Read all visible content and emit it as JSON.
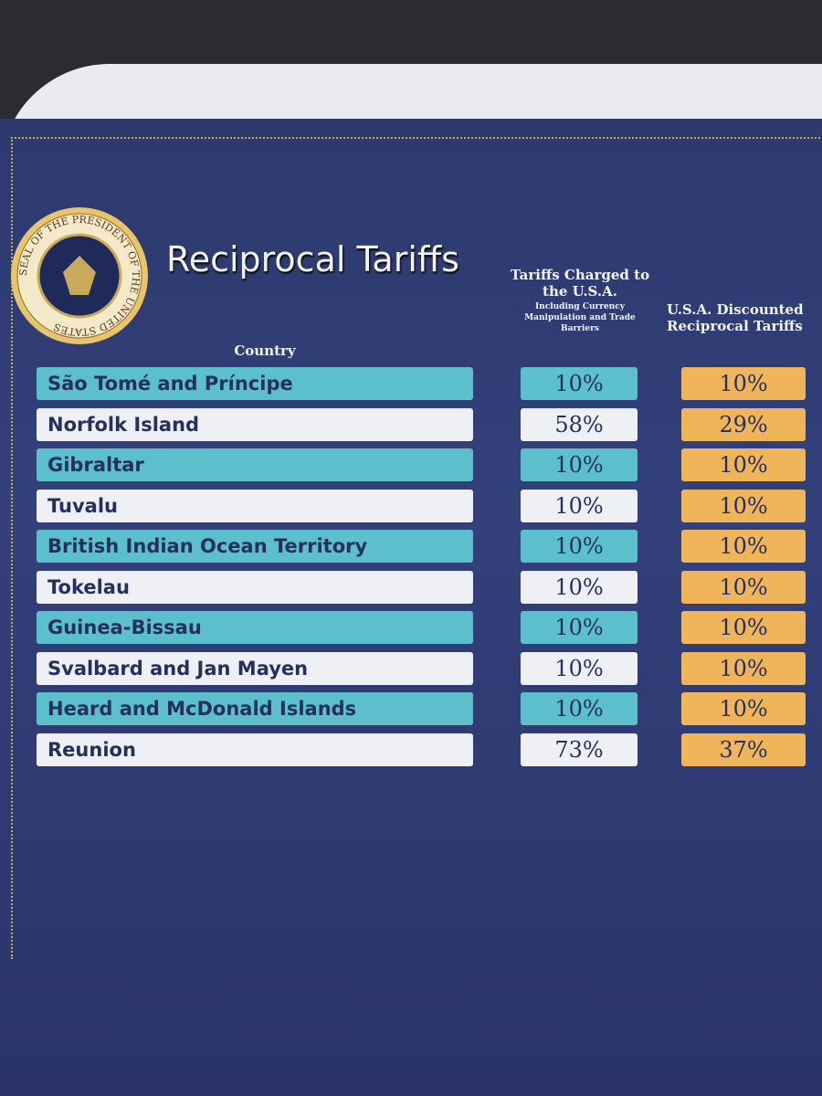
{
  "seal": {
    "text": "SEAL OF THE PRESIDENT OF THE UNITED STATES"
  },
  "header": {
    "title": "Reciprocal Tariffs"
  },
  "table": {
    "columns": [
      {
        "title": "Country"
      },
      {
        "title": "Tariffs Charged to the U.S.A.",
        "subtitle": "Including Currency Manipulation and Trade Barriers"
      },
      {
        "title": "U.S.A. Discounted Reciprocal Tariffs"
      }
    ],
    "rows": [
      [
        "São Tomé and Príncipe",
        "10%",
        "10%"
      ],
      [
        "Norfolk Island",
        "58%",
        "29%"
      ],
      [
        "Gibraltar",
        "10%",
        "10%"
      ],
      [
        "Tuvalu",
        "10%",
        "10%"
      ],
      [
        "British Indian Ocean Territory",
        "10%",
        "10%"
      ],
      [
        "Tokelau",
        "10%",
        "10%"
      ],
      [
        "Guinea-Bissau",
        "10%",
        "10%"
      ],
      [
        "Svalbard and Jan Mayen",
        "10%",
        "10%"
      ],
      [
        "Heard and McDonald Islands",
        "10%",
        "10%"
      ],
      [
        "Reunion",
        "73%",
        "37%"
      ]
    ]
  }
}
